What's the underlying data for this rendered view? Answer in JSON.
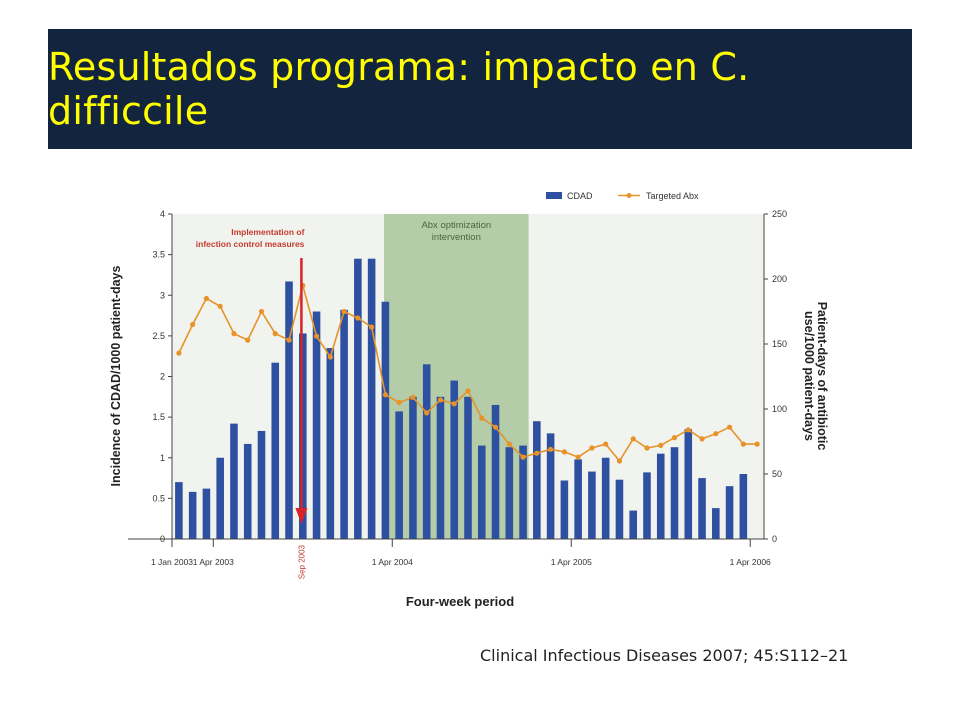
{
  "slide": {
    "title": "Resultados programa: impacto en C. difficcile",
    "citation": "Clinical Infectious Diseases 2007; 45:S112–21"
  },
  "colors": {
    "title_bg": "#13243f",
    "title_text": "#ffff00",
    "bar": "#2e50a0",
    "line": "#e8922a",
    "marker": "#e8922a",
    "intervention_band": "#a9c49a",
    "arrow": "#d8232a",
    "plot_bg": "#f1f3ee"
  },
  "chart_data": {
    "type": "bar",
    "xlabel": "Four-week period",
    "ylabel": "Incidence of CDAD/1000 patient-days",
    "y2label": "Patient-days of antibiotic use/1000 patient-days",
    "ylim": [
      0,
      4
    ],
    "y2lim": [
      0,
      250
    ],
    "yticks": [
      "0",
      "0.5",
      "1",
      "1.5",
      "2",
      "2.5",
      "3",
      "3.5",
      "4"
    ],
    "y2ticks": [
      "0",
      "50",
      "100",
      "150",
      "200",
      "250"
    ],
    "x_tick_labels": [
      {
        "label": "1 Jan 2003",
        "index": 0
      },
      {
        "label": "1 Apr 2003",
        "index": 3
      },
      {
        "label": "1 Apr 2004",
        "index": 16
      },
      {
        "label": "1 Apr 2005",
        "index": 29
      },
      {
        "label": "1 Apr 2006",
        "index": 42
      }
    ],
    "legend": {
      "position": "top-right",
      "bar_label": "CDAD",
      "line_label": "Targeted Abx"
    },
    "series": [
      {
        "name": "CDAD",
        "kind": "bar",
        "axis": "left",
        "values": [
          0.7,
          0.58,
          0.62,
          1.0,
          1.42,
          1.17,
          1.33,
          2.17,
          3.17,
          2.53,
          2.8,
          2.35,
          2.82,
          3.45,
          3.45,
          2.92,
          1.57,
          1.75,
          2.15,
          1.75,
          1.95,
          1.75,
          1.15,
          1.65,
          1.13,
          1.15,
          1.45,
          1.3,
          0.72,
          0.98,
          0.83,
          1.0,
          0.73,
          0.35,
          0.82,
          1.05,
          1.13,
          1.35,
          0.75,
          0.38,
          0.65,
          0.8
        ]
      },
      {
        "name": "Targeted Abx",
        "kind": "line",
        "axis": "right",
        "values": [
          143,
          165,
          185,
          179,
          158,
          153,
          175,
          158,
          153,
          195,
          156,
          140,
          175,
          170,
          163,
          111,
          105,
          109,
          97,
          107,
          104,
          114,
          93,
          86,
          73,
          63,
          66,
          69,
          67,
          63,
          70,
          73,
          60,
          77,
          70,
          72,
          78,
          84,
          77,
          81,
          86,
          73,
          73
        ]
      }
    ],
    "annotations": [
      {
        "text": "Implementation of infection control measures",
        "at_index": 9.4
      },
      {
        "text": "Sep 2003",
        "at_index": 9.4
      },
      {
        "text": "Abx optimization intervention",
        "band": [
          15.4,
          25.9
        ]
      }
    ]
  }
}
